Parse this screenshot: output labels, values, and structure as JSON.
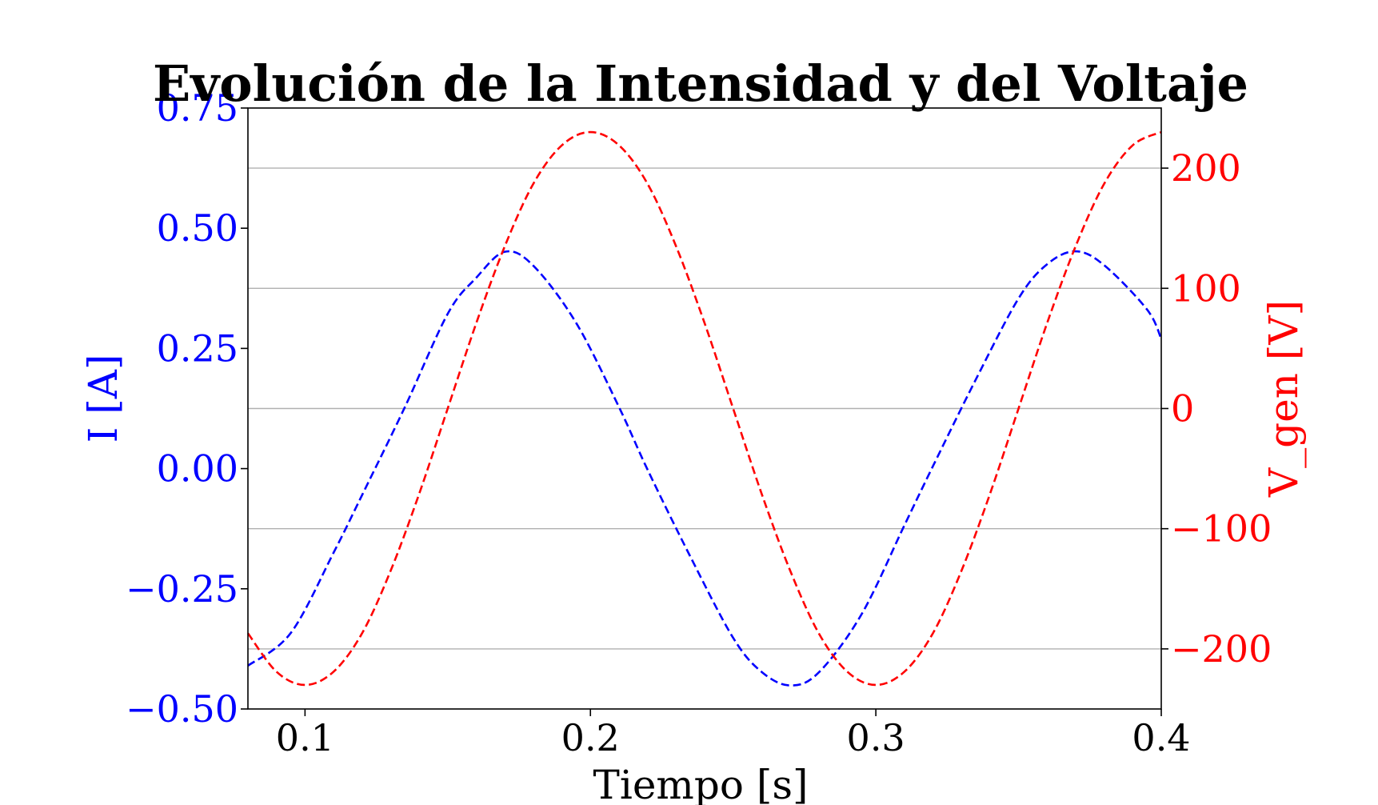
{
  "chart_data": {
    "type": "line",
    "title": "Evolución de la Intensidad y del Voltaje",
    "xlabel": "Tiempo [s]",
    "ylabel_left": "I [A]",
    "ylabel_right": "V_gen [V]",
    "xlim": [
      0.08,
      0.4
    ],
    "ylim_left": [
      -0.5,
      0.75
    ],
    "ylim_right": [
      -250,
      250
    ],
    "x_ticks": [
      "0.1",
      "0.2",
      "0.3",
      "0.4"
    ],
    "y_left_ticks": [
      "0.75",
      "0.50",
      "0.25",
      "0.00",
      "−0.25",
      "−0.50"
    ],
    "y_right_ticks": [
      "200",
      "100",
      "0",
      "−100",
      "−200"
    ],
    "grid": "horizontal, right axis",
    "series": [
      {
        "axis": "left",
        "color": "#0000ff",
        "style": "dashed",
        "x": [
          0.08,
          0.095,
          0.11,
          0.12,
          0.135,
          0.15,
          0.16,
          0.17,
          0.18,
          0.195,
          0.21,
          0.22,
          0.235,
          0.25,
          0.26,
          0.27,
          0.28,
          0.295,
          0.31,
          0.32,
          0.335,
          0.35,
          0.36,
          0.37,
          0.38,
          0.395,
          0.4
        ],
        "y": [
          -0.41,
          -0.342,
          -0.175,
          -0.055,
          0.128,
          0.322,
          0.397,
          0.451,
          0.422,
          0.303,
          0.128,
          -0.002,
          -0.183,
          -0.352,
          -0.423,
          -0.451,
          -0.424,
          -0.303,
          -0.118,
          0.005,
          0.185,
          0.354,
          0.425,
          0.452,
          0.423,
          0.331,
          0.27
        ]
      },
      {
        "axis": "right",
        "color": "#ff0000",
        "style": "dashed",
        "x": [
          0.08,
          0.09,
          0.1,
          0.11,
          0.12,
          0.13,
          0.14,
          0.15,
          0.16,
          0.17,
          0.18,
          0.19,
          0.2,
          0.21,
          0.22,
          0.23,
          0.24,
          0.25,
          0.26,
          0.27,
          0.28,
          0.29,
          0.3,
          0.31,
          0.32,
          0.33,
          0.34,
          0.35,
          0.36,
          0.37,
          0.38,
          0.39,
          0.4
        ],
        "y": [
          -187,
          -219,
          -230,
          -219,
          -187,
          -135,
          -71,
          0,
          71,
          135,
          187,
          219,
          230,
          219,
          187,
          135,
          71,
          0,
          -71,
          -135,
          -187,
          -219,
          -230,
          -219,
          -187,
          -135,
          -71,
          0,
          71,
          135,
          187,
          219,
          230
        ]
      }
    ]
  }
}
